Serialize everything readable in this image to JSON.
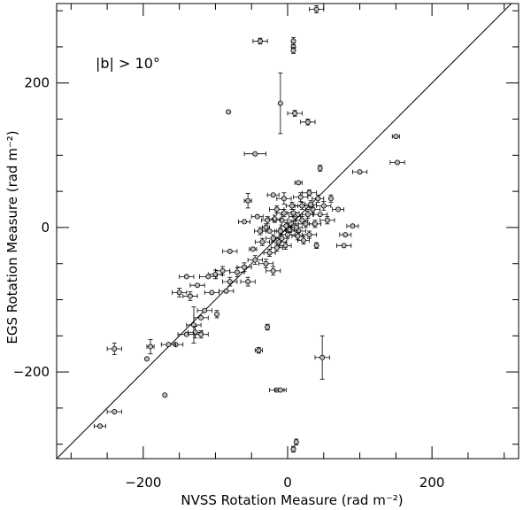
{
  "chart_data": {
    "type": "scatter",
    "title": "",
    "xlabel": "NVSS Rotation Measure (rad m⁻²)",
    "ylabel": "EGS Rotation Measure (rad m⁻²)",
    "xlim": [
      -320,
      320
    ],
    "ylim": [
      -320,
      310
    ],
    "xticks": [
      -200,
      0,
      200
    ],
    "yticks": [
      -200,
      0,
      200
    ],
    "grid": false,
    "annotation": "|b| > 10°",
    "reference_line": "y = x",
    "points": [
      [
        40,
        302,
        10,
        5
      ],
      [
        -38,
        258,
        10,
        4
      ],
      [
        8,
        258,
        0,
        5
      ],
      [
        8,
        250,
        0,
        5
      ],
      [
        8,
        245,
        0,
        4
      ],
      [
        -82,
        160,
        0,
        0
      ],
      [
        -10,
        172,
        0,
        42
      ],
      [
        10,
        158,
        10,
        4
      ],
      [
        28,
        146,
        10,
        4
      ],
      [
        150,
        126,
        5,
        0
      ],
      [
        152,
        90,
        10,
        0
      ],
      [
        100,
        77,
        10,
        0
      ],
      [
        -45,
        102,
        15,
        0
      ],
      [
        45,
        82,
        0,
        4
      ],
      [
        15,
        62,
        5,
        0
      ],
      [
        -20,
        45,
        8,
        0
      ],
      [
        30,
        48,
        10,
        4
      ],
      [
        60,
        40,
        0,
        5
      ],
      [
        -5,
        40,
        10,
        8
      ],
      [
        -55,
        37,
        5,
        10
      ],
      [
        70,
        25,
        8,
        0
      ],
      [
        -42,
        15,
        8,
        0
      ],
      [
        20,
        30,
        10,
        5
      ],
      [
        45,
        18,
        10,
        0
      ],
      [
        90,
        2,
        8,
        0
      ],
      [
        -60,
        8,
        8,
        0
      ],
      [
        -30,
        0,
        5,
        5
      ],
      [
        55,
        10,
        10,
        5
      ],
      [
        80,
        -10,
        8,
        0
      ],
      [
        78,
        -25,
        10,
        0
      ],
      [
        -25,
        -5,
        10,
        0
      ],
      [
        40,
        -25,
        0,
        4
      ],
      [
        -20,
        -15,
        10,
        5
      ],
      [
        -80,
        -33,
        10,
        0
      ],
      [
        -48,
        -30,
        5,
        0
      ],
      [
        -12,
        -20,
        10,
        5
      ],
      [
        5,
        5,
        5,
        5
      ],
      [
        10,
        15,
        8,
        6
      ],
      [
        -8,
        10,
        8,
        8
      ],
      [
        15,
        -5,
        10,
        5
      ],
      [
        25,
        5,
        10,
        5
      ],
      [
        35,
        25,
        10,
        5
      ],
      [
        -15,
        25,
        10,
        5
      ],
      [
        0,
        -10,
        10,
        5
      ],
      [
        -5,
        20,
        10,
        5
      ],
      [
        30,
        -10,
        10,
        5
      ],
      [
        18,
        42,
        10,
        6
      ],
      [
        -35,
        -20,
        10,
        5
      ],
      [
        50,
        30,
        10,
        6
      ],
      [
        -45,
        -45,
        10,
        6
      ],
      [
        -60,
        -55,
        10,
        6
      ],
      [
        -30,
        -50,
        10,
        6
      ],
      [
        -20,
        -60,
        10,
        6
      ],
      [
        -70,
        -62,
        10,
        6
      ],
      [
        -90,
        -60,
        10,
        6
      ],
      [
        -100,
        -65,
        10,
        6
      ],
      [
        -80,
        -75,
        10,
        6
      ],
      [
        -55,
        -75,
        10,
        6
      ],
      [
        -110,
        -68,
        12,
        0
      ],
      [
        -140,
        -68,
        10,
        0
      ],
      [
        -125,
        -80,
        10,
        0
      ],
      [
        -150,
        -90,
        10,
        6
      ],
      [
        -105,
        -90,
        10,
        0
      ],
      [
        -85,
        -88,
        10,
        0
      ],
      [
        -135,
        -95,
        10,
        6
      ],
      [
        -115,
        -115,
        10,
        0
      ],
      [
        -120,
        -125,
        10,
        0
      ],
      [
        -98,
        -120,
        0,
        5
      ],
      [
        -130,
        -135,
        10,
        25
      ],
      [
        -140,
        -148,
        12,
        0
      ],
      [
        -128,
        -145,
        10,
        8
      ],
      [
        -120,
        -148,
        10,
        5
      ],
      [
        -155,
        -162,
        10,
        0
      ],
      [
        -165,
        -162,
        10,
        0
      ],
      [
        -190,
        -165,
        5,
        10
      ],
      [
        -240,
        -168,
        10,
        8
      ],
      [
        -195,
        -182,
        0,
        0
      ],
      [
        -28,
        -138,
        0,
        4
      ],
      [
        -40,
        -170,
        5,
        4
      ],
      [
        -15,
        -225,
        10,
        0
      ],
      [
        -10,
        -225,
        8,
        0
      ],
      [
        48,
        -180,
        10,
        30
      ],
      [
        -170,
        -232,
        0,
        0
      ],
      [
        -240,
        -255,
        10,
        0
      ],
      [
        -260,
        -275,
        8,
        0
      ],
      [
        12,
        -297,
        0,
        4
      ],
      [
        8,
        -307,
        0,
        4
      ],
      [
        -2,
        2,
        8,
        5
      ],
      [
        3,
        -3,
        6,
        4
      ],
      [
        12,
        0,
        8,
        5
      ],
      [
        -10,
        -5,
        8,
        4
      ],
      [
        20,
        10,
        8,
        5
      ],
      [
        -15,
        -28,
        8,
        5
      ],
      [
        8,
        20,
        8,
        5
      ],
      [
        28,
        18,
        8,
        5
      ],
      [
        -8,
        -15,
        8,
        5
      ],
      [
        38,
        5,
        8,
        5
      ],
      [
        -25,
        -35,
        8,
        5
      ],
      [
        22,
        -18,
        8,
        5
      ],
      [
        -3,
        -25,
        8,
        5
      ],
      [
        6,
        30,
        8,
        5
      ],
      [
        -18,
        12,
        8,
        5
      ],
      [
        42,
        40,
        8,
        5
      ],
      [
        -38,
        -5,
        8,
        5
      ],
      [
        14,
        -12,
        8,
        5
      ],
      [
        -28,
        10,
        8,
        5
      ],
      [
        32,
        32,
        8,
        5
      ]
    ]
  }
}
